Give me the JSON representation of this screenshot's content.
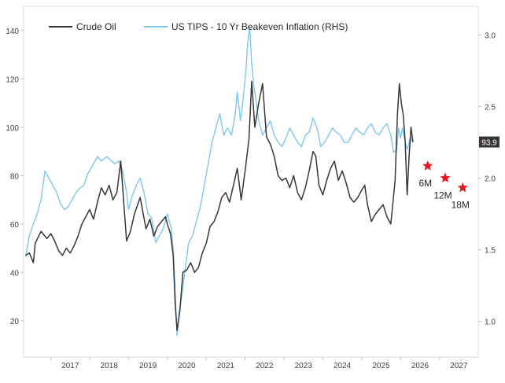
{
  "chart_data": {
    "type": "line",
    "x_ticks": [
      "2017",
      "2018",
      "2019",
      "2020",
      "2021",
      "2022",
      "2023",
      "2024",
      "2025",
      "2026",
      "2027"
    ],
    "x_range": [
      2016.3,
      2028.0
    ],
    "y_left": {
      "range": [
        5,
        150
      ],
      "ticks": [
        20,
        40,
        60,
        80,
        100,
        120,
        140
      ]
    },
    "y_right": {
      "range": [
        0.75,
        3.2
      ],
      "ticks": [
        "1.0",
        "1.5",
        "2.0",
        "2.5",
        "3.0"
      ]
    },
    "grid": false,
    "legend_position": "top-left",
    "series": [
      {
        "name": "Crude Oil",
        "axis": "left",
        "color": "#3a3535",
        "points": [
          [
            2016.35,
            47
          ],
          [
            2016.45,
            48
          ],
          [
            2016.55,
            44
          ],
          [
            2016.6,
            52
          ],
          [
            2016.75,
            57
          ],
          [
            2016.9,
            54
          ],
          [
            2017.0,
            56
          ],
          [
            2017.1,
            53
          ],
          [
            2017.2,
            49
          ],
          [
            2017.3,
            47
          ],
          [
            2017.4,
            50
          ],
          [
            2017.5,
            48
          ],
          [
            2017.6,
            51
          ],
          [
            2017.7,
            55
          ],
          [
            2017.8,
            60
          ],
          [
            2017.9,
            63
          ],
          [
            2018.0,
            66
          ],
          [
            2018.1,
            62
          ],
          [
            2018.2,
            69
          ],
          [
            2018.3,
            75
          ],
          [
            2018.4,
            72
          ],
          [
            2018.5,
            76
          ],
          [
            2018.6,
            70
          ],
          [
            2018.7,
            73
          ],
          [
            2018.8,
            86
          ],
          [
            2018.85,
            75
          ],
          [
            2018.95,
            53
          ],
          [
            2019.05,
            57
          ],
          [
            2019.15,
            64
          ],
          [
            2019.3,
            71
          ],
          [
            2019.45,
            58
          ],
          [
            2019.55,
            62
          ],
          [
            2019.65,
            55
          ],
          [
            2019.75,
            59
          ],
          [
            2019.85,
            61
          ],
          [
            2019.95,
            63
          ],
          [
            2020.0,
            60
          ],
          [
            2020.08,
            56
          ],
          [
            2020.15,
            47
          ],
          [
            2020.2,
            27
          ],
          [
            2020.25,
            16
          ],
          [
            2020.32,
            24
          ],
          [
            2020.4,
            40
          ],
          [
            2020.5,
            41
          ],
          [
            2020.6,
            44
          ],
          [
            2020.7,
            40
          ],
          [
            2020.8,
            42
          ],
          [
            2020.9,
            48
          ],
          [
            2021.0,
            52
          ],
          [
            2021.1,
            59
          ],
          [
            2021.2,
            61
          ],
          [
            2021.3,
            65
          ],
          [
            2021.4,
            71
          ],
          [
            2021.5,
            73
          ],
          [
            2021.6,
            69
          ],
          [
            2021.7,
            76
          ],
          [
            2021.8,
            83
          ],
          [
            2021.9,
            70
          ],
          [
            2022.0,
            82
          ],
          [
            2022.1,
            95
          ],
          [
            2022.17,
            119
          ],
          [
            2022.25,
            100
          ],
          [
            2022.35,
            110
          ],
          [
            2022.45,
            118
          ],
          [
            2022.55,
            96
          ],
          [
            2022.65,
            93
          ],
          [
            2022.75,
            88
          ],
          [
            2022.85,
            80
          ],
          [
            2022.95,
            78
          ],
          [
            2023.05,
            79
          ],
          [
            2023.15,
            75
          ],
          [
            2023.25,
            80
          ],
          [
            2023.35,
            73
          ],
          [
            2023.45,
            70
          ],
          [
            2023.55,
            75
          ],
          [
            2023.65,
            82
          ],
          [
            2023.75,
            90
          ],
          [
            2023.82,
            88
          ],
          [
            2023.9,
            76
          ],
          [
            2024.0,
            72
          ],
          [
            2024.1,
            78
          ],
          [
            2024.2,
            83
          ],
          [
            2024.3,
            86
          ],
          [
            2024.4,
            78
          ],
          [
            2024.5,
            82
          ],
          [
            2024.6,
            77
          ],
          [
            2024.7,
            71
          ],
          [
            2024.8,
            69
          ],
          [
            2024.9,
            71
          ],
          [
            2025.0,
            74
          ],
          [
            2025.08,
            76
          ],
          [
            2025.15,
            68
          ],
          [
            2025.25,
            61
          ],
          [
            2025.35,
            64
          ],
          [
            2025.45,
            66
          ],
          [
            2025.55,
            68
          ],
          [
            2025.65,
            63
          ],
          [
            2025.75,
            60
          ],
          [
            2025.8,
            68
          ],
          [
            2025.86,
            78
          ],
          [
            2025.92,
            105
          ],
          [
            2025.97,
            118
          ],
          [
            2026.02,
            110
          ],
          [
            2026.07,
            105
          ],
          [
            2026.12,
            94
          ],
          [
            2026.17,
            72
          ],
          [
            2026.22,
            88
          ],
          [
            2026.27,
            100
          ],
          [
            2026.32,
            93.9
          ]
        ]
      },
      {
        "name": "US TIPS - 10 Yr Beakeven Inflation (RHS)",
        "axis": "right",
        "color": "#7ec6ee",
        "points": [
          [
            2016.35,
            1.45
          ],
          [
            2016.45,
            1.6
          ],
          [
            2016.55,
            1.68
          ],
          [
            2016.65,
            1.75
          ],
          [
            2016.75,
            1.85
          ],
          [
            2016.85,
            2.05
          ],
          [
            2016.95,
            2.0
          ],
          [
            2017.05,
            1.95
          ],
          [
            2017.15,
            1.9
          ],
          [
            2017.25,
            1.82
          ],
          [
            2017.35,
            1.78
          ],
          [
            2017.45,
            1.8
          ],
          [
            2017.55,
            1.85
          ],
          [
            2017.65,
            1.9
          ],
          [
            2017.75,
            1.93
          ],
          [
            2017.85,
            1.95
          ],
          [
            2017.95,
            2.03
          ],
          [
            2018.1,
            2.1
          ],
          [
            2018.2,
            2.15
          ],
          [
            2018.3,
            2.12
          ],
          [
            2018.45,
            2.15
          ],
          [
            2018.55,
            2.12
          ],
          [
            2018.65,
            2.1
          ],
          [
            2018.75,
            2.12
          ],
          [
            2018.85,
            2.05
          ],
          [
            2018.95,
            1.9
          ],
          [
            2019.0,
            1.78
          ],
          [
            2019.1,
            1.88
          ],
          [
            2019.2,
            1.95
          ],
          [
            2019.3,
            2.0
          ],
          [
            2019.4,
            1.9
          ],
          [
            2019.5,
            1.75
          ],
          [
            2019.6,
            1.72
          ],
          [
            2019.7,
            1.55
          ],
          [
            2019.8,
            1.6
          ],
          [
            2019.9,
            1.65
          ],
          [
            2020.0,
            1.75
          ],
          [
            2020.1,
            1.65
          ],
          [
            2020.15,
            1.5
          ],
          [
            2020.2,
            1.2
          ],
          [
            2020.25,
            0.9
          ],
          [
            2020.3,
            1.05
          ],
          [
            2020.38,
            1.2
          ],
          [
            2020.45,
            1.35
          ],
          [
            2020.55,
            1.55
          ],
          [
            2020.65,
            1.6
          ],
          [
            2020.75,
            1.7
          ],
          [
            2020.85,
            1.8
          ],
          [
            2020.95,
            1.95
          ],
          [
            2021.05,
            2.1
          ],
          [
            2021.15,
            2.25
          ],
          [
            2021.25,
            2.35
          ],
          [
            2021.35,
            2.45
          ],
          [
            2021.45,
            2.3
          ],
          [
            2021.55,
            2.35
          ],
          [
            2021.65,
            2.3
          ],
          [
            2021.75,
            2.45
          ],
          [
            2021.8,
            2.6
          ],
          [
            2021.88,
            2.4
          ],
          [
            2021.95,
            2.55
          ],
          [
            2022.02,
            2.75
          ],
          [
            2022.07,
            2.95
          ],
          [
            2022.12,
            3.05
          ],
          [
            2022.17,
            2.8
          ],
          [
            2022.22,
            2.65
          ],
          [
            2022.28,
            2.55
          ],
          [
            2022.35,
            2.4
          ],
          [
            2022.45,
            2.3
          ],
          [
            2022.55,
            2.35
          ],
          [
            2022.65,
            2.4
          ],
          [
            2022.75,
            2.3
          ],
          [
            2022.85,
            2.25
          ],
          [
            2022.95,
            2.22
          ],
          [
            2023.05,
            2.28
          ],
          [
            2023.15,
            2.35
          ],
          [
            2023.25,
            2.3
          ],
          [
            2023.35,
            2.25
          ],
          [
            2023.45,
            2.22
          ],
          [
            2023.55,
            2.3
          ],
          [
            2023.65,
            2.32
          ],
          [
            2023.75,
            2.42
          ],
          [
            2023.85,
            2.35
          ],
          [
            2023.95,
            2.22
          ],
          [
            2024.05,
            2.25
          ],
          [
            2024.15,
            2.3
          ],
          [
            2024.25,
            2.35
          ],
          [
            2024.35,
            2.32
          ],
          [
            2024.45,
            2.3
          ],
          [
            2024.55,
            2.25
          ],
          [
            2024.65,
            2.25
          ],
          [
            2024.75,
            2.3
          ],
          [
            2024.85,
            2.35
          ],
          [
            2024.95,
            2.32
          ],
          [
            2025.05,
            2.3
          ],
          [
            2025.15,
            2.35
          ],
          [
            2025.25,
            2.38
          ],
          [
            2025.35,
            2.32
          ],
          [
            2025.45,
            2.3
          ],
          [
            2025.55,
            2.35
          ],
          [
            2025.65,
            2.38
          ],
          [
            2025.75,
            2.3
          ],
          [
            2025.82,
            2.18
          ],
          [
            2025.9,
            2.2
          ],
          [
            2025.95,
            2.35
          ],
          [
            2026.0,
            2.28
          ],
          [
            2026.05,
            2.35
          ],
          [
            2026.12,
            2.25
          ],
          [
            2026.18,
            2.2
          ],
          [
            2026.25,
            2.28
          ],
          [
            2026.32,
            2.25
          ]
        ]
      }
    ],
    "forecasts": [
      {
        "label": "6M",
        "x": 2026.7,
        "y": 84,
        "color": "#e8141e"
      },
      {
        "label": "12M",
        "x": 2027.15,
        "y": 79,
        "color": "#e8141e"
      },
      {
        "label": "18M",
        "x": 2027.6,
        "y": 75,
        "color": "#e8141e"
      }
    ],
    "last_value_label": {
      "text": "93.9",
      "color": "#3a3535"
    }
  }
}
